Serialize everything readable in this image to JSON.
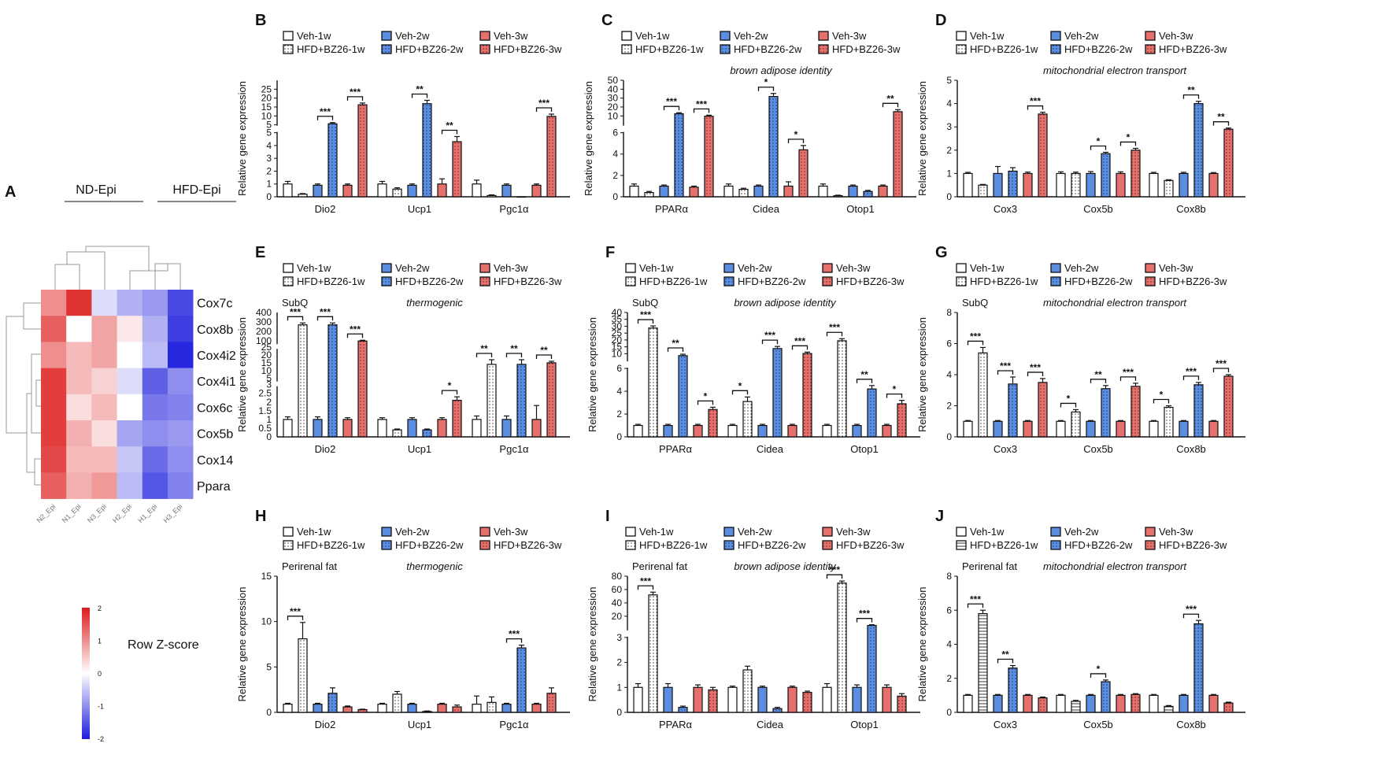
{
  "colors": {
    "veh1": "#ffffff",
    "hfd1": "#f4f4f4",
    "veh2": "#5b8ee0",
    "hfd2": "#5b8ee0",
    "veh3": "#e6706b",
    "hfd3": "#e6706b"
  },
  "legend_labels": [
    "Veh-1w",
    "HFD+BZ26-1w",
    "Veh-2w",
    "HFD+BZ26-2w",
    "Veh-3w",
    "HFD+BZ26-3w"
  ],
  "heatmap": {
    "label": "A",
    "group_labels": [
      "ND-Epi",
      "HFD-Epi"
    ],
    "rows": [
      "Cox7c",
      "Cox8b",
      "Cox4i2",
      "Cox4i1",
      "Cox6c",
      "Cox5b",
      "Cox14",
      "Ppara"
    ],
    "cols": [
      "N2_Epi",
      "N1_Epi",
      "N3_Epi",
      "H2_Epi",
      "H1_Epi",
      "H3_Epi"
    ],
    "values": [
      [
        1.0,
        1.8,
        -0.3,
        -0.7,
        -0.9,
        -1.6
      ],
      [
        1.4,
        0.0,
        0.8,
        0.2,
        -0.7,
        -1.7
      ],
      [
        1.0,
        0.6,
        0.8,
        0.0,
        -0.6,
        -1.9
      ],
      [
        1.7,
        0.6,
        0.4,
        -0.3,
        -1.4,
        -1.0
      ],
      [
        1.7,
        0.3,
        0.6,
        0.0,
        -1.2,
        -1.1
      ],
      [
        1.7,
        0.7,
        0.3,
        -0.8,
        -1.0,
        -0.9
      ],
      [
        1.6,
        0.6,
        0.6,
        -0.5,
        -1.3,
        -1.0
      ],
      [
        1.4,
        0.7,
        0.9,
        -0.6,
        -1.5,
        -1.1
      ]
    ],
    "colorbar_title": "Row Z-score",
    "colorbar_ticks": [
      "2",
      "1",
      "0",
      "-1",
      "-2"
    ]
  },
  "chart_data": [
    {
      "panel": "B",
      "type": "bar",
      "annotation": "",
      "italic": "",
      "ylabel": "Relative gene expression",
      "categories": [
        "Dio2",
        "Ucp1",
        "Pgc1α"
      ],
      "values": [
        [
          1,
          0.2,
          0.9,
          5.5,
          0.9,
          14
        ],
        [
          1,
          0.6,
          0.9,
          14.5,
          1,
          4.3
        ],
        [
          1,
          0.1,
          0.9,
          0,
          0.9,
          8.8
        ]
      ],
      "errors": [
        [
          0.2,
          0.05,
          0.1,
          0.5,
          0.1,
          0.8
        ],
        [
          0.2,
          0.1,
          0.1,
          1.5,
          0.4,
          0.4
        ],
        [
          0.3,
          0.05,
          0.1,
          0,
          0.1,
          1
        ]
      ],
      "lower_max": 5,
      "upper_range": [
        5,
        25
      ],
      "lower_ticks": [
        "0",
        "1",
        "2",
        "3",
        "4",
        "5"
      ],
      "upper_ticks": [
        "5",
        "10",
        "15",
        "20",
        "25"
      ],
      "sig": [
        {
          "g": 0,
          "p": [
            2,
            3
          ],
          "t": "***"
        },
        {
          "g": 0,
          "p": [
            4,
            5
          ],
          "t": "***"
        },
        {
          "g": 1,
          "p": [
            2,
            3
          ],
          "t": "**"
        },
        {
          "g": 1,
          "p": [
            4,
            5
          ],
          "t": "**"
        },
        {
          "g": 2,
          "p": [
            4,
            5
          ],
          "t": "***"
        }
      ]
    },
    {
      "panel": "C",
      "type": "bar",
      "annotation": "",
      "italic": "brown adipose identity",
      "ylabel": "Relative gene expression",
      "categories": [
        "PPARα",
        "Cidea",
        "Otop1"
      ],
      "values": [
        [
          1,
          0.4,
          1,
          17,
          0.9,
          14.5
        ],
        [
          1,
          0.7,
          1,
          34,
          1,
          4.4
        ],
        [
          1,
          0.1,
          1,
          0.5,
          1,
          19
        ]
      ],
      "errors": [
        [
          0.2,
          0.1,
          0.1,
          1,
          0.1,
          1
        ],
        [
          0.2,
          0.1,
          0.1,
          3,
          0.4,
          0.4
        ],
        [
          0.2,
          0.05,
          0.1,
          0.1,
          0.1,
          2
        ]
      ],
      "lower_max": 6,
      "upper_range": [
        6,
        50
      ],
      "lower_ticks": [
        "0",
        "2",
        "4",
        "6"
      ],
      "upper_ticks": [
        "10",
        "20",
        "30",
        "40",
        "50"
      ],
      "sig": [
        {
          "g": 0,
          "p": [
            2,
            3
          ],
          "t": "***"
        },
        {
          "g": 0,
          "p": [
            4,
            5
          ],
          "t": "***"
        },
        {
          "g": 1,
          "p": [
            2,
            3
          ],
          "t": "*"
        },
        {
          "g": 1,
          "p": [
            4,
            5
          ],
          "t": "*"
        },
        {
          "g": 2,
          "p": [
            4,
            5
          ],
          "t": "**"
        }
      ]
    },
    {
      "panel": "D",
      "type": "bar",
      "annotation": "",
      "italic": "mitochondrial electron transport",
      "ylabel": "Relative gene expression",
      "categories": [
        "Cox3",
        "Cox5b",
        "Cox8b"
      ],
      "values": [
        [
          1,
          0.5,
          1,
          1.1,
          1,
          3.55
        ],
        [
          1,
          1,
          1,
          1.85,
          1,
          2
        ],
        [
          1,
          0.7,
          1,
          4,
          1,
          2.9
        ]
      ],
      "errors": [
        [
          0.05,
          0.03,
          0.3,
          0.15,
          0.06,
          0.08
        ],
        [
          0.07,
          0.06,
          0.08,
          0.06,
          0.07,
          0.08
        ],
        [
          0.05,
          0.03,
          0.05,
          0.1,
          0.04,
          0.05
        ]
      ],
      "ymax": 5,
      "ticks": [
        "0",
        "1",
        "2",
        "3",
        "4",
        "5"
      ],
      "sig": [
        {
          "g": 0,
          "p": [
            4,
            5
          ],
          "t": "***"
        },
        {
          "g": 1,
          "p": [
            2,
            3
          ],
          "t": "*"
        },
        {
          "g": 1,
          "p": [
            4,
            5
          ],
          "t": "*"
        },
        {
          "g": 2,
          "p": [
            2,
            3
          ],
          "t": "**"
        },
        {
          "g": 2,
          "p": [
            4,
            5
          ],
          "t": "**"
        }
      ]
    },
    {
      "panel": "E",
      "type": "bar",
      "annotation": "SubQ",
      "italic": "thermogenic",
      "ylabel": "Relative gene expression",
      "categories": [
        "Dio2",
        "Ucp1",
        "Pgc1α"
      ],
      "values": [
        [
          1,
          270,
          1,
          270,
          1,
          100
        ],
        [
          1,
          0.4,
          1,
          0.4,
          1,
          2.1
        ],
        [
          1,
          14,
          1,
          14,
          1,
          15
        ]
      ],
      "errors": [
        [
          0.15,
          20,
          0.15,
          20,
          0.1,
          8
        ],
        [
          0.1,
          0.05,
          0.1,
          0.05,
          0.1,
          0.2
        ],
        [
          0.2,
          3,
          0.2,
          3,
          0.8,
          1
        ]
      ],
      "lower_max": 3,
      "ticks_low": [
        "0",
        "0.5",
        "1",
        "1.5",
        "2",
        "2.5",
        "3"
      ],
      "ticks_mid": [
        "5",
        "10",
        "15",
        "20",
        "25"
      ],
      "ticks_top": [
        "100",
        "200",
        "300",
        "400"
      ],
      "sig": [
        {
          "g": 0,
          "p": [
            0,
            1
          ],
          "t": "***"
        },
        {
          "g": 0,
          "p": [
            2,
            3
          ],
          "t": "***"
        },
        {
          "g": 0,
          "p": [
            4,
            5
          ],
          "t": "***"
        },
        {
          "g": 1,
          "p": [
            4,
            5
          ],
          "t": "*"
        },
        {
          "g": 2,
          "p": [
            0,
            1
          ],
          "t": "**"
        },
        {
          "g": 2,
          "p": [
            2,
            3
          ],
          "t": "**"
        },
        {
          "g": 2,
          "p": [
            4,
            5
          ],
          "t": "**"
        }
      ]
    },
    {
      "panel": "F",
      "type": "bar",
      "annotation": "SubQ",
      "italic": "brown adipose identity",
      "ylabel": "Relative gene expression",
      "categories": [
        "PPARα",
        "Cidea",
        "Otop1"
      ],
      "values": [
        [
          1,
          29,
          1,
          9.5,
          1,
          2.4
        ],
        [
          1,
          3.1,
          1,
          14.5,
          1,
          11
        ],
        [
          1,
          20,
          1,
          4.2,
          1,
          2.9
        ]
      ],
      "errors": [
        [
          0.1,
          1.5,
          0.1,
          1,
          0.1,
          0.2
        ],
        [
          0.1,
          0.4,
          0.1,
          1.5,
          0.1,
          1
        ],
        [
          0.1,
          1.5,
          0.1,
          0.3,
          0.1,
          0.3
        ]
      ],
      "lower_max": 6,
      "upper_range": [
        6,
        40
      ],
      "lower_ticks": [
        "0",
        "2",
        "4",
        "6"
      ],
      "upper_ticks": [
        "10",
        "15",
        "20",
        "25",
        "30",
        "35",
        "40"
      ],
      "sig": [
        {
          "g": 0,
          "p": [
            0,
            1
          ],
          "t": "***"
        },
        {
          "g": 0,
          "p": [
            2,
            3
          ],
          "t": "**"
        },
        {
          "g": 0,
          "p": [
            4,
            5
          ],
          "t": "*"
        },
        {
          "g": 1,
          "p": [
            0,
            1
          ],
          "t": "*"
        },
        {
          "g": 1,
          "p": [
            2,
            3
          ],
          "t": "***"
        },
        {
          "g": 1,
          "p": [
            4,
            5
          ],
          "t": "***"
        },
        {
          "g": 2,
          "p": [
            0,
            1
          ],
          "t": "***"
        },
        {
          "g": 2,
          "p": [
            2,
            3
          ],
          "t": "**"
        },
        {
          "g": 2,
          "p": [
            4,
            5
          ],
          "t": "*"
        }
      ]
    },
    {
      "panel": "G",
      "type": "bar",
      "annotation": "SubQ",
      "italic": "mitochondrial electron transport",
      "ylabel": "Relative gene expression",
      "categories": [
        "Cox3",
        "Cox5b",
        "Cox8b"
      ],
      "values": [
        [
          1,
          5.4,
          1,
          3.4,
          1,
          3.5
        ],
        [
          1,
          1.6,
          1,
          3.1,
          1,
          3.25
        ],
        [
          1,
          1.9,
          1,
          3.35,
          1,
          3.9
        ]
      ],
      "errors": [
        [
          0.05,
          0.35,
          0.05,
          0.45,
          0.05,
          0.25
        ],
        [
          0.05,
          0.15,
          0.05,
          0.2,
          0.05,
          0.2
        ],
        [
          0.05,
          0.1,
          0.05,
          0.15,
          0.05,
          0.1
        ]
      ],
      "ymax": 8,
      "ticks": [
        "0",
        "2",
        "4",
        "6",
        "8"
      ],
      "sig": [
        {
          "g": 0,
          "p": [
            0,
            1
          ],
          "t": "***"
        },
        {
          "g": 0,
          "p": [
            2,
            3
          ],
          "t": "***"
        },
        {
          "g": 0,
          "p": [
            4,
            5
          ],
          "t": "***"
        },
        {
          "g": 1,
          "p": [
            0,
            1
          ],
          "t": "*"
        },
        {
          "g": 1,
          "p": [
            2,
            3
          ],
          "t": "**"
        },
        {
          "g": 1,
          "p": [
            4,
            5
          ],
          "t": "***"
        },
        {
          "g": 2,
          "p": [
            0,
            1
          ],
          "t": "*"
        },
        {
          "g": 2,
          "p": [
            2,
            3
          ],
          "t": "***"
        },
        {
          "g": 2,
          "p": [
            4,
            5
          ],
          "t": "***"
        }
      ]
    },
    {
      "panel": "H",
      "type": "bar",
      "annotation": "Perirenal fat",
      "italic": "thermogenic",
      "ylabel": "Relative gene expression",
      "categories": [
        "Dio2",
        "Ucp1",
        "Pgc1α"
      ],
      "values": [
        [
          0.9,
          8.1,
          0.9,
          2.1,
          0.6,
          0.3
        ],
        [
          0.9,
          2,
          0.9,
          0.1,
          0.9,
          0.6
        ],
        [
          0.9,
          1.1,
          0.9,
          7.1,
          0.9,
          2.1
        ]
      ],
      "errors": [
        [
          0.1,
          1.8,
          0.1,
          0.6,
          0.1,
          0.05
        ],
        [
          0.1,
          0.3,
          0.1,
          0.05,
          0.1,
          0.2
        ],
        [
          0.9,
          0.6,
          0.1,
          0.3,
          0.1,
          0.6
        ]
      ],
      "ymax": 15,
      "ticks": [
        "0",
        "5",
        "10",
        "15"
      ],
      "sig": [
        {
          "g": 0,
          "p": [
            0,
            1
          ],
          "t": "***"
        },
        {
          "g": 2,
          "p": [
            2,
            3
          ],
          "t": "***"
        }
      ]
    },
    {
      "panel": "I",
      "type": "bar",
      "annotation": "Perirenal fat",
      "italic": "brown adipose identity",
      "ylabel": "Relative gene expression",
      "categories": [
        "PPARα",
        "Cidea",
        "Otop1"
      ],
      "values": [
        [
          1,
          53,
          1,
          0.2,
          1,
          0.9
        ],
        [
          1,
          1.7,
          1,
          0.15,
          1,
          0.8
        ],
        [
          1,
          70,
          1,
          9,
          1,
          0.65
        ]
      ],
      "errors": [
        [
          0.15,
          4,
          0.15,
          0.05,
          0.1,
          0.1
        ],
        [
          0.05,
          0.15,
          0.05,
          0.05,
          0.05,
          0.05
        ],
        [
          0.15,
          3,
          0.1,
          1,
          0.1,
          0.1
        ]
      ],
      "lower_max": 3,
      "upper_range": [
        3,
        80
      ],
      "lower_ticks": [
        "0",
        "1",
        "2",
        "3"
      ],
      "upper_ticks": [
        "20",
        "40",
        "60",
        "80"
      ],
      "sig": [
        {
          "g": 0,
          "p": [
            0,
            1
          ],
          "t": "***"
        },
        {
          "g": 2,
          "p": [
            0,
            1
          ],
          "t": "***"
        },
        {
          "g": 2,
          "p": [
            2,
            3
          ],
          "t": "***"
        }
      ]
    },
    {
      "panel": "J",
      "type": "bar",
      "annotation": "Perirenal fat",
      "italic": "mitochondrial electron transport",
      "ylabel": "Relative gene expression",
      "categories": [
        "Cox3",
        "Cox5b",
        "Cox8b"
      ],
      "values": [
        [
          1,
          5.8,
          1,
          2.6,
          1,
          0.85
        ],
        [
          1,
          0.65,
          1,
          1.8,
          1,
          1.05
        ],
        [
          1,
          0.35,
          1,
          5.2,
          1,
          0.55
        ]
      ],
      "errors": [
        [
          0.05,
          0.2,
          0.05,
          0.15,
          0.05,
          0.05
        ],
        [
          0.05,
          0.05,
          0.05,
          0.1,
          0.05,
          0.05
        ],
        [
          0.05,
          0.05,
          0.05,
          0.2,
          0.05,
          0.05
        ]
      ],
      "ymax": 8,
      "ticks": [
        "0",
        "2",
        "4",
        "6",
        "8"
      ],
      "sig": [
        {
          "g": 0,
          "p": [
            0,
            1
          ],
          "t": "***"
        },
        {
          "g": 0,
          "p": [
            2,
            3
          ],
          "t": "**"
        },
        {
          "g": 1,
          "p": [
            2,
            3
          ],
          "t": "*"
        },
        {
          "g": 2,
          "p": [
            2,
            3
          ],
          "t": "***"
        }
      ]
    }
  ]
}
